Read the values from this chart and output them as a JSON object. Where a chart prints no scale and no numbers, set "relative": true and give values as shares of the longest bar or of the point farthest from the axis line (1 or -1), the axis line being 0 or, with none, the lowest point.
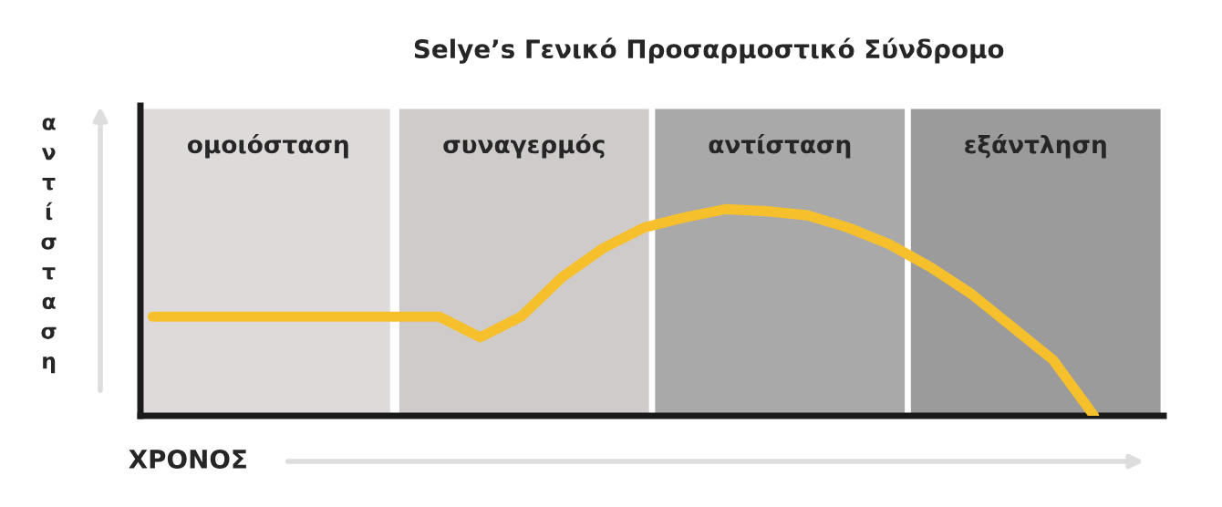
{
  "chart_data": {
    "type": "line",
    "title": "Selye’s Γενικό Προσαρμοστικό Σύνδρομο",
    "xlabel": "ΧΡΟΝΟΣ",
    "ylabel": "αντίσταση",
    "relative": true,
    "categories": [
      null,
      null,
      null,
      null,
      null,
      null,
      null,
      null,
      null,
      null,
      null,
      null,
      null,
      null,
      null,
      null,
      null,
      null,
      null,
      null,
      null,
      null,
      null,
      null
    ],
    "series": [
      {
        "color": "#f5c02c",
        "values": [
          0.48,
          0.48,
          0.48,
          0.48,
          0.48,
          0.48,
          0.48,
          0.48,
          0.38,
          0.48,
          0.67,
          0.81,
          0.91,
          0.96,
          1.0,
          0.99,
          0.97,
          0.91,
          0.83,
          0.72,
          0.59,
          0.43,
          0.27,
          0
        ]
      }
    ],
    "annotations": [
      "ομοιόσταση",
      "συναγερμός",
      "αντίσταση",
      "εξάντληση"
    ]
  }
}
